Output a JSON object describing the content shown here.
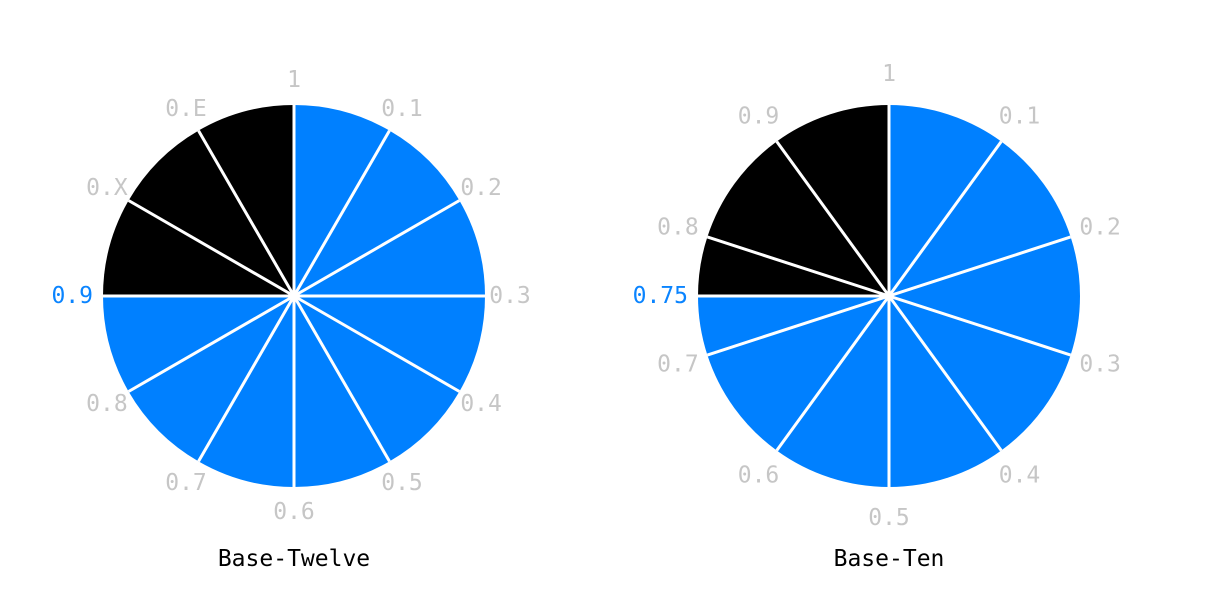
{
  "colors": {
    "filled": "#0080ff",
    "remaining": "#000000",
    "divider": "#ffffff",
    "tick_label": "#c6c6c6",
    "highlight_label": "#0a84ff",
    "caption": "#000000"
  },
  "diagrams": [
    {
      "caption": "Base-Twelve",
      "divisions": 12,
      "filled_fraction": 0.75,
      "highlight_label": "0.9",
      "tick_labels": [
        "1",
        "0.1",
        "0.2",
        "0.3",
        "0.4",
        "0.5",
        "0.6",
        "0.7",
        "0.8",
        "0.9",
        "0.X",
        "0.E"
      ]
    },
    {
      "caption": "Base-Ten",
      "divisions": 10,
      "filled_fraction": 0.75,
      "highlight_label": "0.75",
      "tick_labels": [
        "1",
        "0.1",
        "0.2",
        "0.3",
        "0.4",
        "0.5",
        "0.6",
        "0.7",
        "0.8",
        "0.9"
      ]
    }
  ]
}
